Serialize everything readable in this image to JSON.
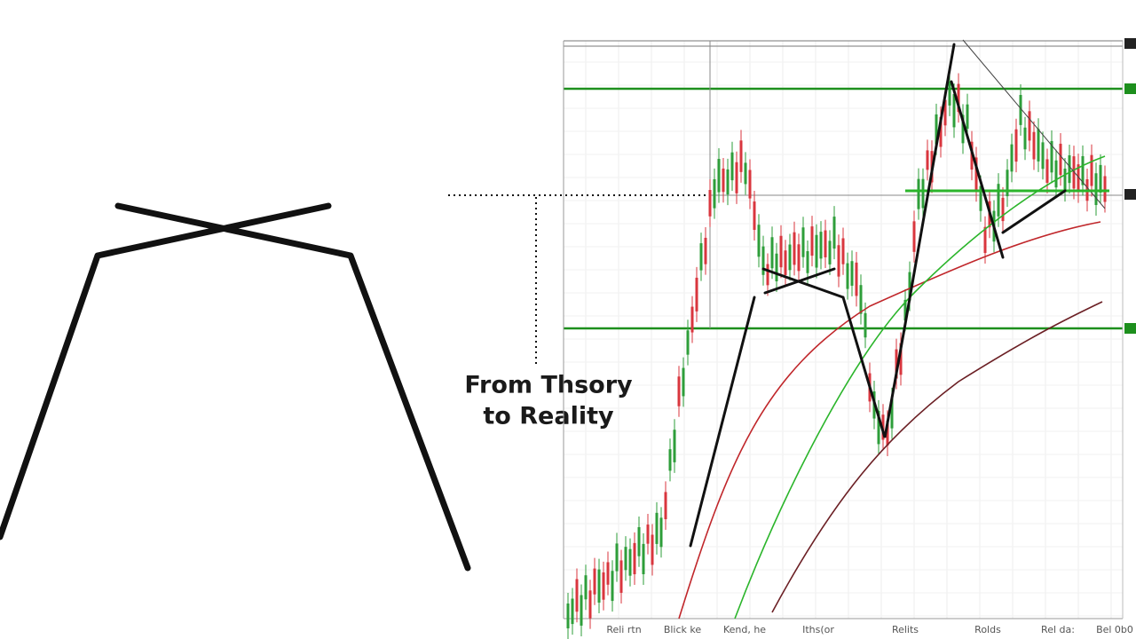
{
  "caption": {
    "lines": [
      "From Thsory",
      "to Reality"
    ]
  },
  "chart": {
    "x_labels": [
      "Reli rtn",
      "Blick ke",
      "Kend, he",
      "Iths(or",
      "Relits",
      "Rolds",
      "Rel da:",
      "Bel 0b0"
    ]
  }
}
